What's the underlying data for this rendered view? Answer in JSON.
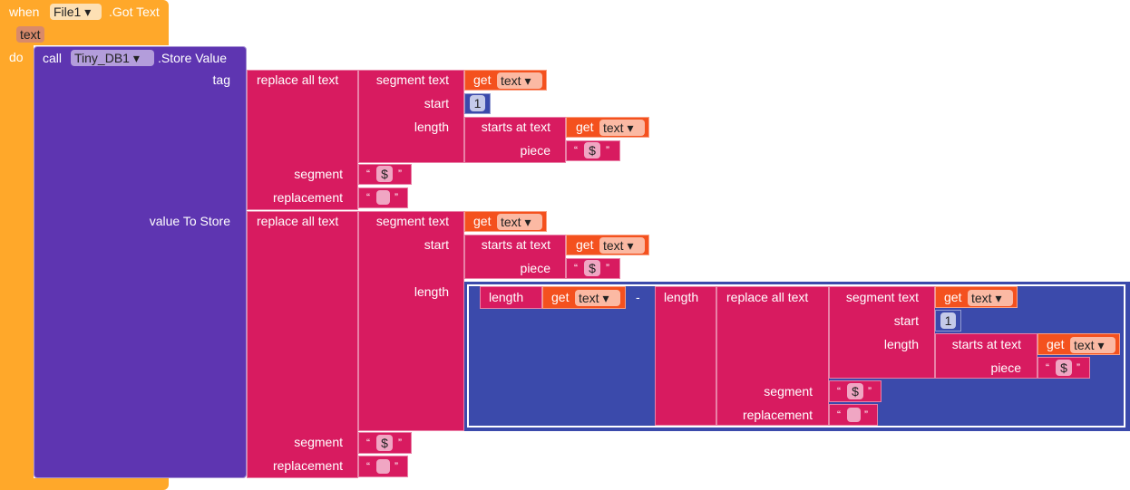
{
  "event": {
    "when": "when",
    "component": "File1 ▾",
    "name": ".Got Text",
    "param": "text",
    "do": "do"
  },
  "call": {
    "call": "call",
    "component": "Tiny_DB1 ▾",
    "method": ".Store Value",
    "tag": "tag",
    "value": "value To Store"
  },
  "labels": {
    "replace_all": "replace all text",
    "segment_text": "segment text",
    "start": "start",
    "length": "length",
    "starts_at": "starts at text",
    "piece": "piece",
    "segment": "segment",
    "replacement": "replacement",
    "get": "get",
    "var": "text ▾",
    "minus": "-",
    "open_quote": "“",
    "close_quote": "”",
    "dollar": "$",
    "one": "1",
    "empty": ""
  },
  "colors": {
    "event": "#ffa82a",
    "call": "#5e35b1",
    "text": "#d81b60",
    "get": "#f4511e",
    "math": "#3b4aab"
  }
}
